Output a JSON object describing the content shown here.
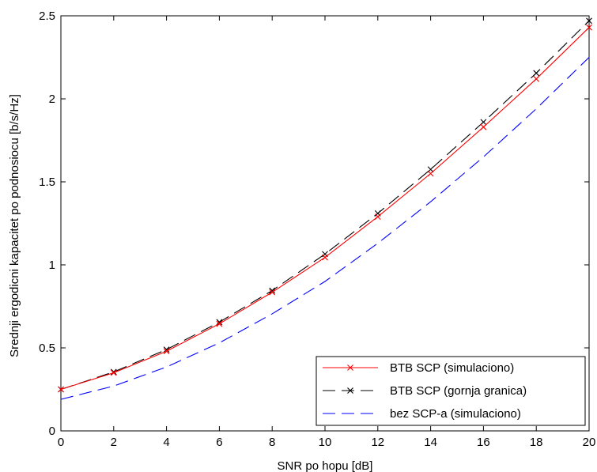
{
  "chart_data": {
    "type": "line",
    "title": "",
    "xlabel": "SNR po hopu [dB]",
    "ylabel": "Srednji ergodicni kapacitet po podnosiocu [b/s/Hz]",
    "xlim": [
      0,
      20
    ],
    "ylim": [
      0,
      2.5
    ],
    "xticks": [
      0,
      2,
      4,
      6,
      8,
      10,
      12,
      14,
      16,
      18,
      20
    ],
    "yticks": [
      0,
      0.5,
      1,
      1.5,
      2,
      2.5
    ],
    "xtick_labels": [
      "0",
      "2",
      "4",
      "6",
      "8",
      "10",
      "12",
      "14",
      "16",
      "18",
      "20"
    ],
    "ytick_labels": [
      "0",
      "0.5",
      "1",
      "1.5",
      "2",
      "2.5"
    ],
    "grid": false,
    "legend_position": "bottom-right",
    "x": [
      0,
      2,
      4,
      6,
      8,
      10,
      12,
      14,
      16,
      18,
      20
    ],
    "series": [
      {
        "name": "BTB SCP (simulaciono)",
        "color": "#ff0000",
        "line": "solid",
        "marker": "x",
        "values": [
          0.25,
          0.35,
          0.48,
          0.645,
          0.835,
          1.045,
          1.29,
          1.55,
          1.83,
          2.12,
          2.43
        ]
      },
      {
        "name": "BTB SCP (gornja granica)",
        "color": "#000000",
        "line": "dashed",
        "marker": "x",
        "values": [
          0.25,
          0.355,
          0.49,
          0.655,
          0.845,
          1.065,
          1.31,
          1.575,
          1.86,
          2.155,
          2.47
        ]
      },
      {
        "name": "bez SCP-a (simulaciono)",
        "color": "#0000ff",
        "line": "dashed",
        "marker": "none",
        "values": [
          0.19,
          0.27,
          0.385,
          0.53,
          0.705,
          0.9,
          1.13,
          1.38,
          1.65,
          1.94,
          2.25
        ]
      }
    ]
  }
}
